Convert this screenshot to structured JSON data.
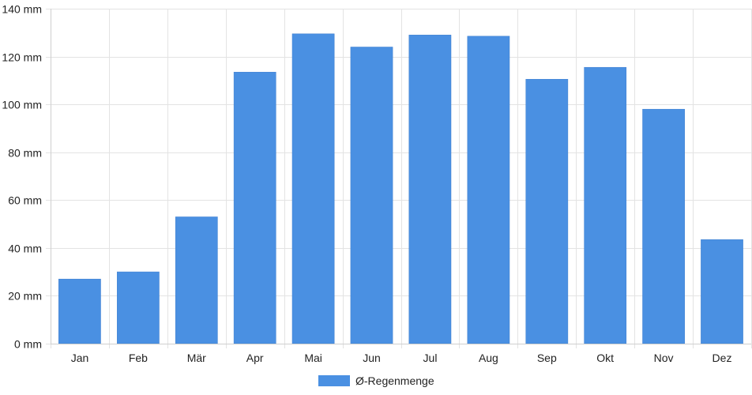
{
  "chart_data": {
    "type": "bar",
    "categories": [
      "Jan",
      "Feb",
      "Mär",
      "Apr",
      "Mai",
      "Jun",
      "Jul",
      "Aug",
      "Sep",
      "Okt",
      "Nov",
      "Dez"
    ],
    "series": [
      {
        "name": "Ø-Regenmenge",
        "values": [
          27,
          30,
          53,
          113.5,
          129.5,
          124,
          129,
          128.5,
          110.5,
          115.5,
          98,
          43.5
        ],
        "color": "#4a90e2"
      }
    ],
    "y_ticks": [
      "0 mm",
      "20 mm",
      "40 mm",
      "60 mm",
      "80 mm",
      "100 mm",
      "120 mm",
      "140 mm"
    ],
    "ylim": [
      0,
      140
    ],
    "y_step": 20,
    "grid": true,
    "legend_position": "bottom"
  }
}
